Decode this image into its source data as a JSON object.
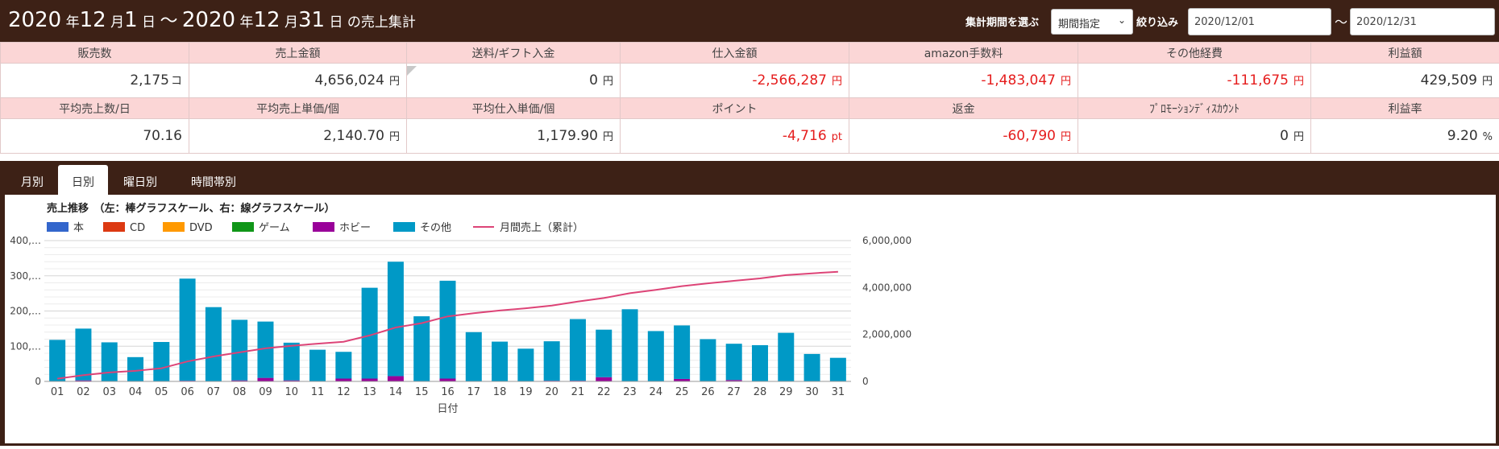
{
  "header": {
    "title": {
      "y1": "2020",
      "nen1": "年",
      "m1": "12",
      "gatsu1": "月",
      "d1": "1",
      "nichi1": "日",
      "tilde": "～",
      "y2": "2020",
      "nen2": "年",
      "m2": "12",
      "gatsu2": "月",
      "d2": "31",
      "nichi2": "日",
      "suffix": "の売上集計"
    },
    "period_label": "集計期間を選ぶ",
    "period_select": "期間指定",
    "filter_label": "絞り込み",
    "date_from": "2020/12/01",
    "range_sep": "～",
    "date_to": "2020/12/31"
  },
  "stats": {
    "row1": [
      {
        "label": "販売数",
        "value": "2,175",
        "unit": "コ",
        "neg": false
      },
      {
        "label": "売上金額",
        "value": "4,656,024",
        "unit": "円",
        "neg": false
      },
      {
        "label": "送料/ギフト入金",
        "value": "0",
        "unit": "円",
        "neg": false
      },
      {
        "label": "仕入金額",
        "value": "-2,566,287",
        "unit": "円",
        "neg": true
      },
      {
        "label": "amazon手数料",
        "value": "-1,483,047",
        "unit": "円",
        "neg": true
      },
      {
        "label": "その他経費",
        "value": "-111,675",
        "unit": "円",
        "neg": true
      },
      {
        "label": "利益額",
        "value": "429,509",
        "unit": "円",
        "neg": false
      }
    ],
    "row2": [
      {
        "label": "平均売上数/日",
        "value": "70.16",
        "unit": "",
        "neg": false
      },
      {
        "label": "平均売上単価/個",
        "value": "2,140.70",
        "unit": "円",
        "neg": false
      },
      {
        "label": "平均仕入単価/個",
        "value": "1,179.90",
        "unit": "円",
        "neg": false
      },
      {
        "label": "ポイント",
        "value": "-4,716",
        "unit": "pt",
        "neg": true
      },
      {
        "label": "返金",
        "value": "-60,790",
        "unit": "円",
        "neg": true
      },
      {
        "label": "ﾌﾟﾛﾓｰｼｮﾝﾃﾞｨｽｶｳﾝﾄ",
        "value": "0",
        "unit": "円",
        "neg": false
      },
      {
        "label": "利益率",
        "value": "9.20",
        "unit": "%",
        "neg": false
      }
    ]
  },
  "tabs": [
    {
      "label": "月別",
      "active": false
    },
    {
      "label": "日別",
      "active": true
    },
    {
      "label": "曜日別",
      "active": false
    },
    {
      "label": "時間帯別",
      "active": false
    }
  ],
  "chart_data": {
    "type": "bar",
    "title": "売上推移　（左：棒グラフスケール、右：線グラフスケール）",
    "xlabel": "日付",
    "categories": [
      "01",
      "02",
      "03",
      "04",
      "05",
      "06",
      "07",
      "08",
      "09",
      "10",
      "11",
      "12",
      "13",
      "14",
      "15",
      "16",
      "17",
      "18",
      "19",
      "20",
      "21",
      "22",
      "23",
      "24",
      "25",
      "26",
      "27",
      "28",
      "29",
      "30",
      "31"
    ],
    "y_left": {
      "ticks": [
        "400,…",
        "300,…",
        "200,…",
        "100,…",
        "0"
      ],
      "range": [
        0,
        400000
      ]
    },
    "y_right": {
      "ticks": [
        "6,000,000",
        "4,000,000",
        "2,000,000",
        "0"
      ],
      "range": [
        0,
        6000000
      ]
    },
    "grid": true,
    "legend_position": "top-left",
    "series": [
      {
        "name": "本",
        "kind": "bar",
        "color": "#3366cc",
        "values": [
          0,
          0,
          0,
          0,
          0,
          0,
          0,
          0,
          0,
          0,
          0,
          0,
          0,
          0,
          0,
          0,
          0,
          0,
          0,
          0,
          0,
          0,
          0,
          0,
          0,
          0,
          0,
          0,
          0,
          0,
          0
        ]
      },
      {
        "name": "CD",
        "kind": "bar",
        "color": "#dc3912",
        "values": [
          0,
          0,
          0,
          0,
          0,
          0,
          0,
          0,
          0,
          0,
          0,
          0,
          0,
          0,
          0,
          0,
          0,
          0,
          0,
          0,
          0,
          0,
          0,
          0,
          0,
          0,
          0,
          0,
          0,
          0,
          0
        ]
      },
      {
        "name": "DVD",
        "kind": "bar",
        "color": "#ff9900",
        "values": [
          0,
          0,
          0,
          0,
          0,
          0,
          0,
          0,
          0,
          0,
          0,
          0,
          0,
          0,
          0,
          0,
          0,
          0,
          0,
          0,
          0,
          0,
          0,
          0,
          0,
          0,
          0,
          0,
          0,
          0,
          0
        ]
      },
      {
        "name": "ゲーム",
        "kind": "bar",
        "color": "#109618",
        "values": [
          0,
          0,
          0,
          0,
          0,
          0,
          0,
          0,
          0,
          0,
          0,
          0,
          0,
          0,
          0,
          0,
          0,
          0,
          0,
          0,
          0,
          0,
          0,
          0,
          0,
          0,
          0,
          0,
          0,
          0,
          0
        ]
      },
      {
        "name": "ホビー",
        "kind": "bar",
        "color": "#990099",
        "values": [
          0,
          3000,
          0,
          0,
          0,
          2000,
          0,
          3000,
          10000,
          3000,
          0,
          8000,
          8000,
          15000,
          0,
          8000,
          0,
          0,
          0,
          2000,
          2000,
          12000,
          0,
          0,
          7000,
          0,
          4000,
          0,
          0,
          0,
          0
        ]
      },
      {
        "name": "その他",
        "kind": "bar",
        "color": "#0099c6",
        "values": [
          118000,
          147000,
          111000,
          69000,
          112000,
          290000,
          211000,
          172000,
          160000,
          107000,
          90000,
          76000,
          258000,
          325000,
          185000,
          278000,
          140000,
          113000,
          93000,
          112000,
          175000,
          135000,
          205000,
          143000,
          152000,
          120000,
          103000,
          103000,
          138000,
          78000,
          67000
        ]
      },
      {
        "name": "月間売上（累計）",
        "kind": "line",
        "color": "#dd4477",
        "axis": "right",
        "values": [
          118000,
          268000,
          379000,
          448000,
          560000,
          852000,
          1063000,
          1238000,
          1408000,
          1518000,
          1608000,
          1692000,
          1958000,
          2298000,
          2483000,
          2769000,
          2909000,
          3022000,
          3115000,
          3229000,
          3406000,
          3553000,
          3758000,
          3901000,
          4060000,
          4180000,
          4287000,
          4390000,
          4528000,
          4606000,
          4673000
        ]
      }
    ]
  }
}
